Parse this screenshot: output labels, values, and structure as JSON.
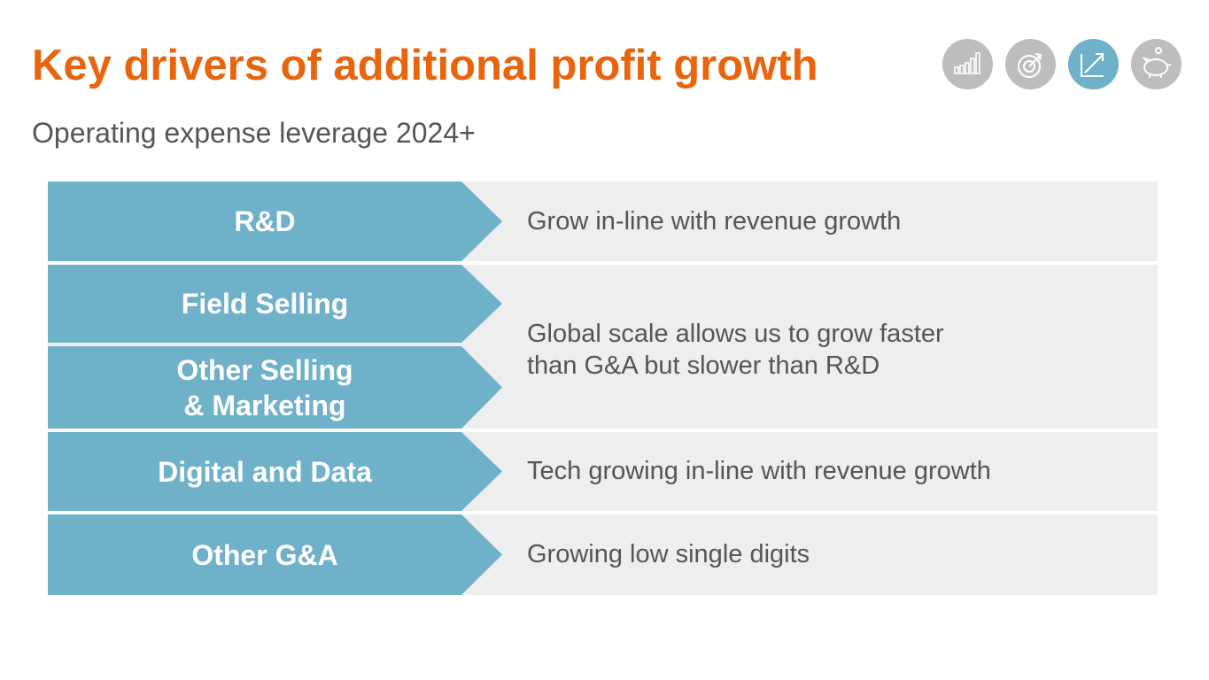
{
  "slide": {
    "title": "Key drivers of additional profit growth",
    "subtitle": "Operating expense leverage 2024+"
  },
  "colors": {
    "title": "#e8650e",
    "arrow": "#6fb1c9",
    "panel": "#eeeeee",
    "icon_inactive": "#bdbdbd",
    "icon_active": "#6fb1c9",
    "text": "#555555"
  },
  "nav_icons": [
    {
      "icon": "bar-chart-icon",
      "active": false
    },
    {
      "icon": "target-icon",
      "active": false
    },
    {
      "icon": "growth-arrow-icon",
      "active": true
    },
    {
      "icon": "piggy-bank-icon",
      "active": false
    }
  ],
  "drivers": [
    {
      "label": "R&D"
    },
    {
      "label": "Field Selling"
    },
    {
      "label_line1": "Other Selling",
      "label_line2": "& Marketing"
    },
    {
      "label": "Digital and Data"
    },
    {
      "label": "Other G&A"
    }
  ],
  "descriptions": [
    {
      "text": "Grow in-line with revenue growth"
    },
    {
      "line1": "Global scale allows us to grow faster",
      "line2": "than G&A but slower than R&D"
    },
    {
      "text": "Tech growing in-line with revenue growth"
    },
    {
      "text": "Growing low single digits"
    }
  ]
}
